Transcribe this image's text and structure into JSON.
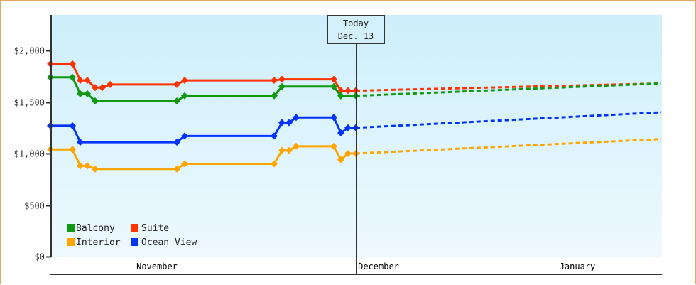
{
  "chart_data": {
    "type": "line",
    "title": "",
    "xlabel": "",
    "ylabel": "",
    "ylim": [
      0,
      2300
    ],
    "y_ticks": [
      {
        "value": 0,
        "label": "$0"
      },
      {
        "value": 500,
        "label": "$500"
      },
      {
        "value": 1000,
        "label": "$1,000"
      },
      {
        "value": 1500,
        "label": "$1,500"
      },
      {
        "value": 2000,
        "label": "$2,000"
      }
    ],
    "x_categories": [
      "November",
      "December",
      "January"
    ],
    "today_marker": {
      "line1": "Today",
      "line2": "Dec. 13"
    },
    "legend": [
      {
        "name": "Balcony",
        "color": "#119911"
      },
      {
        "name": "Suite",
        "color": "#ff3300"
      },
      {
        "name": "Interior",
        "color": "#ffa500"
      },
      {
        "name": "Ocean View",
        "color": "#0033ff"
      }
    ],
    "series": [
      {
        "name": "Suite",
        "color": "#ff3300",
        "points": [
          [
            70,
            1870
          ],
          [
            101,
            1870
          ],
          [
            112,
            1710
          ],
          [
            122,
            1710
          ],
          [
            133,
            1640
          ],
          [
            143,
            1640
          ],
          [
            154,
            1670
          ],
          [
            248,
            1670
          ],
          [
            259,
            1710
          ],
          [
            385,
            1710
          ],
          [
            396,
            1720
          ],
          [
            469,
            1720
          ],
          [
            479,
            1610
          ],
          [
            489,
            1610
          ],
          [
            500,
            1610
          ]
        ],
        "projection": [
          [
            500,
            1610
          ],
          [
            930,
            1680
          ]
        ]
      },
      {
        "name": "Balcony",
        "color": "#119911",
        "points": [
          [
            70,
            1740
          ],
          [
            101,
            1740
          ],
          [
            112,
            1580
          ],
          [
            122,
            1580
          ],
          [
            133,
            1510
          ],
          [
            248,
            1510
          ],
          [
            259,
            1560
          ],
          [
            385,
            1560
          ],
          [
            396,
            1650
          ],
          [
            469,
            1650
          ],
          [
            479,
            1560
          ],
          [
            500,
            1560
          ]
        ],
        "projection": [
          [
            500,
            1560
          ],
          [
            930,
            1680
          ]
        ]
      },
      {
        "name": "Ocean View",
        "color": "#0033ff",
        "points": [
          [
            70,
            1270
          ],
          [
            101,
            1270
          ],
          [
            112,
            1110
          ],
          [
            248,
            1110
          ],
          [
            259,
            1170
          ],
          [
            385,
            1170
          ],
          [
            396,
            1300
          ],
          [
            406,
            1300
          ],
          [
            416,
            1350
          ],
          [
            469,
            1350
          ],
          [
            479,
            1200
          ],
          [
            489,
            1250
          ],
          [
            500,
            1250
          ]
        ],
        "projection": [
          [
            500,
            1250
          ],
          [
            930,
            1400
          ]
        ]
      },
      {
        "name": "Interior",
        "color": "#ffa500",
        "points": [
          [
            70,
            1040
          ],
          [
            101,
            1040
          ],
          [
            112,
            880
          ],
          [
            122,
            880
          ],
          [
            133,
            850
          ],
          [
            248,
            850
          ],
          [
            259,
            900
          ],
          [
            385,
            900
          ],
          [
            396,
            1030
          ],
          [
            406,
            1030
          ],
          [
            416,
            1070
          ],
          [
            469,
            1070
          ],
          [
            479,
            940
          ],
          [
            489,
            1000
          ],
          [
            500,
            1000
          ]
        ],
        "projection": [
          [
            500,
            1000
          ],
          [
            930,
            1140
          ]
        ]
      }
    ]
  }
}
